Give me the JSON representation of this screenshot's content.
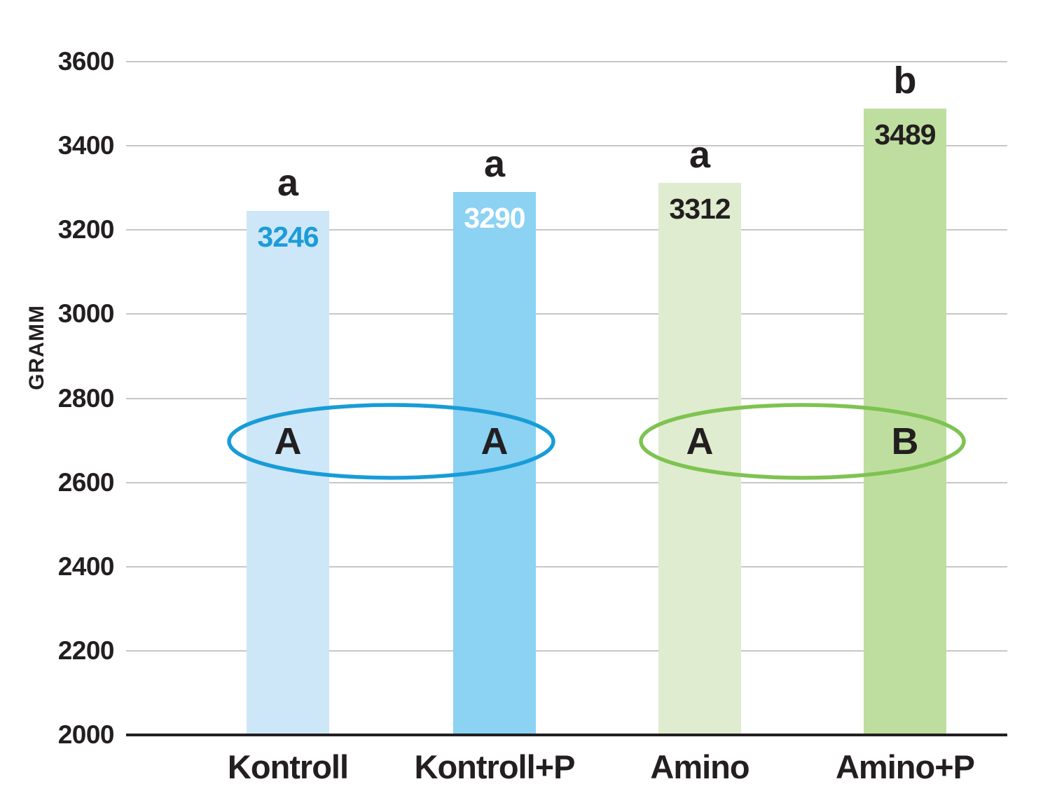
{
  "chart_data": {
    "type": "bar",
    "title": "",
    "xlabel": "",
    "ylabel": "GRAMM",
    "categories": [
      "Kontroll",
      "Kontroll+P",
      "Amino",
      "Amino+P"
    ],
    "values": [
      3246,
      3290,
      3312,
      3489
    ],
    "bar_value_labels": [
      "3246",
      "3290",
      "3312",
      "3489"
    ],
    "significance_letters": [
      "a",
      "a",
      "a",
      "b"
    ],
    "ylim": [
      2000,
      3600
    ],
    "yticks": [
      2000,
      2200,
      2400,
      2600,
      2800,
      3000,
      3200,
      3400,
      3600
    ],
    "grid": true,
    "legend": "none",
    "bar_colors": [
      "#cde7f8",
      "#8bd2f3",
      "#dfeccf",
      "#bede9f"
    ],
    "value_label_colors": [
      "#1b9cd8",
      "#ffffff",
      "#231f20",
      "#231f20"
    ],
    "groups": [
      {
        "bars": [
          0,
          1
        ],
        "letters": [
          "A",
          "A"
        ],
        "color": "#189cd8",
        "level_gramm": 2700
      },
      {
        "bars": [
          2,
          3
        ],
        "letters": [
          "A",
          "B"
        ],
        "color": "#7ec351",
        "level_gramm": 2700
      }
    ]
  },
  "colors": {
    "text": "#231f20",
    "gridline": "#c7c7c9",
    "axis": "#231f20",
    "background": "#ffffff",
    "blue_accent": "#189cd8",
    "green_accent": "#7ec351"
  }
}
